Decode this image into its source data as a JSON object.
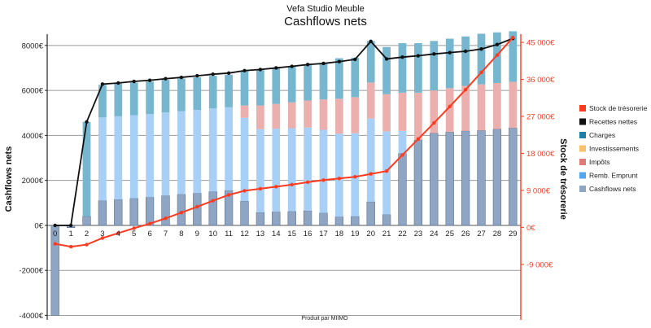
{
  "chart_data": {
    "type": "bar",
    "subtitle": "Vefa Studio Meuble",
    "title": "Cashflows nets",
    "ylabel": "Cashflows nets",
    "y2label": "Stock de trésorerie",
    "footer": "Produit par MIIMO",
    "categories": [
      "0",
      "1",
      "2",
      "3",
      "4",
      "5",
      "6",
      "7",
      "8",
      "9",
      "10",
      "11",
      "12",
      "13",
      "14",
      "15",
      "16",
      "17",
      "18",
      "19",
      "20",
      "21",
      "22",
      "23",
      "24",
      "25",
      "26",
      "27",
      "28",
      "29"
    ],
    "ylim": [
      -4200,
      8500
    ],
    "y_ticks": [
      -4000,
      -2000,
      0,
      2000,
      4000,
      6000,
      8000
    ],
    "y_tick_labels": [
      "-4000€",
      "-2000€",
      "0€",
      "2000€",
      "4000€",
      "6000€",
      "8000€"
    ],
    "y2lim": [
      -22500,
      47000
    ],
    "y2_ticks": [
      -9000,
      0,
      9000,
      18000,
      27000,
      36000,
      45000
    ],
    "y2_tick_labels": [
      "-9 000€",
      "0€",
      "9 000€",
      "18 000€",
      "27 000€",
      "36 000€",
      "45 000€"
    ],
    "grid": true,
    "legend_position": "right",
    "series": [
      {
        "name": "Cashflows nets",
        "kind": "bar",
        "color": "#8fa5c4",
        "values": [
          -4000,
          -100,
          400,
          1100,
          1150,
          1200,
          1250,
          1320,
          1380,
          1430,
          1500,
          1550,
          1080,
          580,
          600,
          620,
          650,
          550,
          380,
          400,
          1050,
          480,
          3200,
          3800,
          4100,
          4150,
          4200,
          4220,
          4280,
          4330
        ]
      },
      {
        "name": "Remb. Emprunt",
        "kind": "bar",
        "color": "#a8cff5",
        "values": [
          0,
          0,
          0,
          3700,
          3700,
          3700,
          3700,
          3700,
          3700,
          3700,
          3700,
          3700,
          3700,
          3700,
          3700,
          3700,
          3700,
          3700,
          3700,
          3700,
          3700,
          3700,
          1000,
          0,
          0,
          0,
          0,
          0,
          0,
          0
        ]
      },
      {
        "name": "Impôts",
        "kind": "bar",
        "color": "#ebb0ad",
        "values": [
          0,
          0,
          0,
          0,
          0,
          0,
          0,
          0,
          0,
          0,
          0,
          0,
          550,
          1050,
          1100,
          1150,
          1200,
          1350,
          1550,
          1600,
          1600,
          1650,
          1700,
          2100,
          1900,
          1950,
          2000,
          2050,
          2050,
          2050
        ]
      },
      {
        "name": "Investissements",
        "kind": "bar",
        "color": "#f8c06c",
        "values": [
          0,
          0,
          0,
          0,
          0,
          0,
          0,
          0,
          0,
          0,
          0,
          0,
          0,
          0,
          0,
          0,
          0,
          0,
          0,
          0,
          0,
          0,
          0,
          0,
          0,
          0,
          0,
          0,
          0,
          0
        ]
      },
      {
        "name": "Charges",
        "kind": "bar",
        "color": "#76b6cf",
        "values": [
          0,
          0,
          4200,
          1450,
          1450,
          1450,
          1450,
          1450,
          1450,
          1450,
          1450,
          1450,
          1550,
          1600,
          1600,
          1600,
          1600,
          1600,
          1800,
          1750,
          1850,
          2100,
          2200,
          2200,
          2200,
          2200,
          2200,
          2250,
          2250,
          2250
        ]
      },
      {
        "name": "Recettes nettes",
        "kind": "line",
        "color": "#111111",
        "values": [
          0,
          0,
          4600,
          6280,
          6330,
          6400,
          6450,
          6520,
          6580,
          6650,
          6720,
          6770,
          6880,
          6930,
          7000,
          7070,
          7150,
          7200,
          7280,
          7380,
          8180,
          7400,
          7480,
          7540,
          7620,
          7680,
          7740,
          7840,
          8040,
          8310
        ]
      },
      {
        "name": "Stock de trésorerie",
        "kind": "line",
        "axis": "right",
        "color": "#ff3b1f",
        "values": [
          -4000,
          -4700,
          -4200,
          -2600,
          -1400,
          -200,
          900,
          2200,
          3600,
          5000,
          6500,
          7900,
          8900,
          9400,
          9900,
          10400,
          11000,
          11500,
          11900,
          12300,
          13000,
          13700,
          17600,
          21500,
          25400,
          29400,
          33500,
          37700,
          41900,
          46200
        ]
      }
    ],
    "legend": [
      {
        "label": "Stock de trésorerie",
        "color": "#ff3b1f"
      },
      {
        "label": "Recettes nettes",
        "color": "#111111"
      },
      {
        "label": "Charges",
        "color": "#1c7ea6"
      },
      {
        "label": "Investissements",
        "color": "#f8c06c"
      },
      {
        "label": "Impôts",
        "color": "#e07a78"
      },
      {
        "label": "Remb. Emprunt",
        "color": "#52a5ee"
      },
      {
        "label": "Cashflows nets",
        "color": "#8fa5c4"
      }
    ]
  }
}
